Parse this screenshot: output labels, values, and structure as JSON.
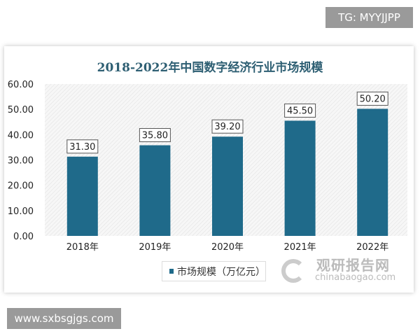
{
  "watermarks": {
    "top": "TG: MYYJJPP",
    "bottom": "www.sxbsgjgs.com"
  },
  "logo": {
    "cn": "观研报告网",
    "en": "chinabaogao.com"
  },
  "chart_data": {
    "type": "bar",
    "title": "2018-2022年中国数字经济行业市场规模",
    "categories": [
      "2018年",
      "2019年",
      "2020年",
      "2021年",
      "2022年"
    ],
    "series": [
      {
        "name": "市场规模（万亿元）",
        "values": [
          31.3,
          35.8,
          39.2,
          45.5,
          50.2
        ],
        "color": "#1f6a8a"
      }
    ],
    "data_labels": [
      "31.30",
      "35.80",
      "39.20",
      "45.50",
      "50.20"
    ],
    "yticks": [
      "0.00",
      "10.00",
      "20.00",
      "30.00",
      "40.00",
      "50.00",
      "60.00"
    ],
    "ylim": [
      0,
      60
    ],
    "grid": false,
    "legend": "bottom"
  }
}
